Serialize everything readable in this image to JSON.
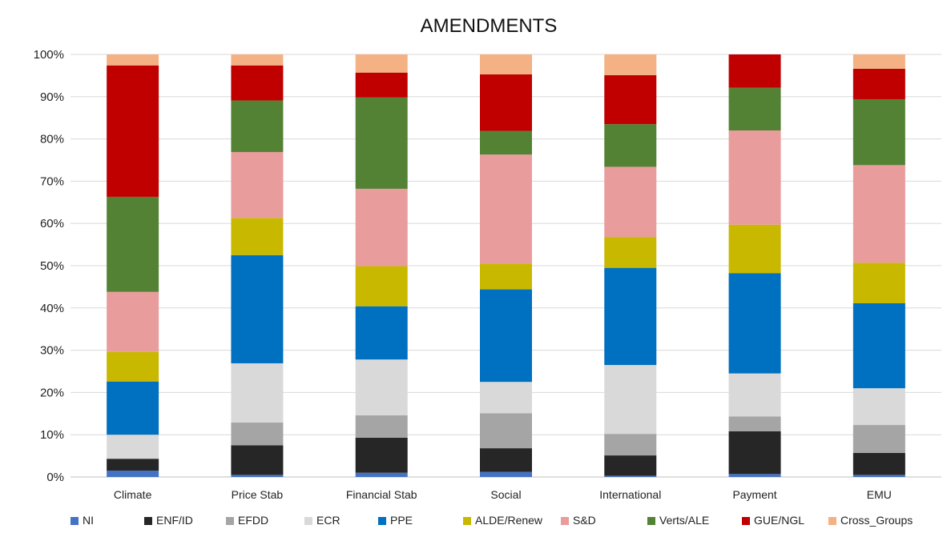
{
  "chart_data": {
    "type": "bar",
    "stacked": true,
    "title": "AMENDMENTS",
    "xlabel": "",
    "ylabel": "",
    "ylim": [
      0,
      100
    ],
    "ytick_labels": [
      "0%",
      "10%",
      "20%",
      "30%",
      "40%",
      "50%",
      "60%",
      "70%",
      "80%",
      "90%",
      "100%"
    ],
    "grid": true,
    "legend_position": "bottom",
    "categories": [
      "Climate",
      "Price Stab",
      "Financial Stab",
      "Social",
      "International",
      "Payment",
      "EMU"
    ],
    "series": [
      {
        "name": "NI",
        "color": "#4472c4",
        "values": [
          1.5,
          0.5,
          1.0,
          1.2,
          0.3,
          0.7,
          0.5
        ]
      },
      {
        "name": "ENF/ID",
        "color": "#262626",
        "values": [
          2.8,
          7.0,
          8.3,
          5.6,
          4.8,
          10.1,
          5.2
        ]
      },
      {
        "name": "EFDD",
        "color": "#a5a5a5",
        "values": [
          0.1,
          5.4,
          5.3,
          8.3,
          5.1,
          3.5,
          6.6
        ]
      },
      {
        "name": "ECR",
        "color": "#d9d9d9",
        "values": [
          5.6,
          14.0,
          13.2,
          7.4,
          16.3,
          10.2,
          8.7
        ]
      },
      {
        "name": "PPE",
        "color": "#0070c0",
        "values": [
          12.6,
          25.6,
          12.6,
          21.9,
          23.0,
          23.7,
          20.1
        ]
      },
      {
        "name": "ALDE/Renew",
        "color": "#c9b800",
        "values": [
          7.0,
          8.8,
          9.5,
          6.1,
          7.3,
          11.5,
          9.6
        ]
      },
      {
        "name": "S&D",
        "color": "#e99c9c",
        "values": [
          14.2,
          15.6,
          18.3,
          25.8,
          16.6,
          22.3,
          23.1
        ]
      },
      {
        "name": "Verts/ALE",
        "color": "#548235",
        "values": [
          22.5,
          12.2,
          21.6,
          5.6,
          10.1,
          10.1,
          15.6
        ]
      },
      {
        "name": "GUE/NGL",
        "color": "#c00000",
        "values": [
          31.1,
          8.3,
          5.9,
          13.4,
          11.6,
          7.9,
          7.2
        ]
      },
      {
        "name": "Cross_Groups",
        "color": "#f4b183",
        "values": [
          2.6,
          2.6,
          4.3,
          4.7,
          4.9,
          0.0,
          3.4
        ]
      }
    ]
  }
}
